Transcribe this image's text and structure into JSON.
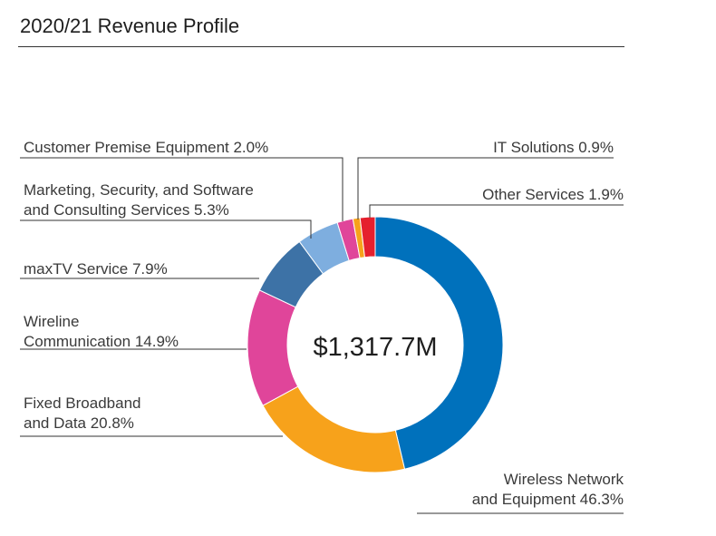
{
  "title": "2020/21 Revenue Profile",
  "chart_data": {
    "type": "pie",
    "variant": "donut",
    "center_label": "$1,317.7M",
    "slices": [
      {
        "name": "Wireless Network and Equipment",
        "value": 46.3,
        "color": "#0071BC",
        "label_lines": [
          "Wireless Network",
          "and Equipment 46.3%"
        ]
      },
      {
        "name": "Fixed Broadband and Data",
        "value": 20.8,
        "color": "#F7A21B",
        "label_lines": [
          "Fixed Broadband",
          "and Data 20.8%"
        ]
      },
      {
        "name": "Wireline Communication",
        "value": 14.9,
        "color": "#E0459A",
        "label_lines": [
          "Wireline",
          "Communication 14.9%"
        ]
      },
      {
        "name": "maxTV Service",
        "value": 7.9,
        "color": "#3D72A6",
        "label_lines": [
          "maxTV Service 7.9%"
        ]
      },
      {
        "name": "Marketing, Security, and Software and Consulting Services",
        "value": 5.3,
        "color": "#7EAEDF",
        "label_lines": [
          "Marketing, Security, and Software",
          "and Consulting Services 5.3%"
        ]
      },
      {
        "name": "Customer Premise Equipment",
        "value": 2.0,
        "color": "#E0459A",
        "label_lines": [
          "Customer Premise Equipment 2.0%"
        ]
      },
      {
        "name": "IT Solutions",
        "value": 0.9,
        "color": "#F7A21B",
        "label_lines": [
          "IT Solutions 0.9%"
        ]
      },
      {
        "name": "Other Services",
        "value": 1.9,
        "color": "#E5202E",
        "label_lines": [
          "Other Services 1.9%"
        ]
      }
    ]
  }
}
